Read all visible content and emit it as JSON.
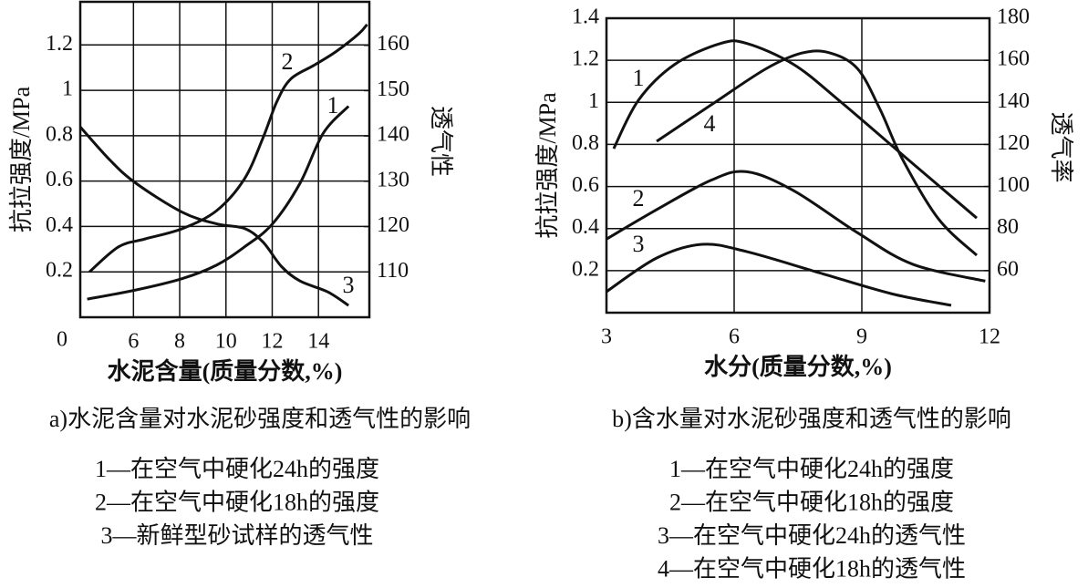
{
  "chart_data": [
    {
      "type": "line",
      "caption": "a)水泥含量对水泥砂强度和透气性的影响",
      "xlabel": "水泥含量(质量分数,%)",
      "ylabel": "抗拉强度/MPa",
      "y2label": "透气性",
      "xlim": [
        3.7,
        16.2
      ],
      "xticks": [
        6,
        8,
        10,
        12,
        14
      ],
      "ylim": [
        0,
        1.39
      ],
      "yticks": [
        0,
        0.2,
        0.4,
        0.6,
        0.8,
        1.0,
        1.2
      ],
      "y2lim": [
        100,
        169.6
      ],
      "y2ticks": [
        110,
        120,
        130,
        140,
        150,
        160
      ],
      "grid": true,
      "color": "#111111",
      "series": [
        {
          "name": "1—在空气中硬化24h的强度",
          "label": "1",
          "color": "#111111",
          "x": [
            4.0,
            6.1,
            8.1,
            9.6,
            10.8,
            12,
            13.2,
            14.2,
            15.3
          ],
          "values": [
            0.08,
            0.12,
            0.17,
            0.23,
            0.31,
            0.41,
            0.59,
            0.81,
            0.93
          ]
        },
        {
          "name": "2—在空气中硬化18h的强度",
          "label": "2",
          "color": "#111111",
          "x": [
            4.1,
            5.35,
            6.5,
            8.1,
            9.6,
            10.8,
            11.6,
            12.2,
            12.8,
            13.8,
            14.75,
            15.75,
            16.1
          ],
          "values": [
            0.2,
            0.31,
            0.345,
            0.39,
            0.47,
            0.61,
            0.79,
            0.95,
            1.05,
            1.11,
            1.17,
            1.25,
            1.29
          ]
        },
        {
          "name": "3—新鲜型砂试样的透气性",
          "label": "3",
          "color": "#111111",
          "axis": "y2",
          "x": [
            3.7,
            5,
            6.1,
            8.1,
            9.6,
            10.8,
            11.6,
            12.4,
            13.2,
            14.4,
            15.3
          ],
          "values": [
            142,
            134.6,
            129.6,
            123.2,
            120.6,
            119.6,
            116.6,
            111.2,
            108,
            105.6,
            102.6
          ]
        }
      ]
    },
    {
      "type": "line",
      "caption": "b)含水量对水泥砂强度和透气性的影响",
      "xlabel": "水分(质量分数,%)",
      "ylabel": "抗拉强度/MPa",
      "y2label": "透气率",
      "xlim": [
        3,
        12
      ],
      "xticks": [
        3,
        6,
        9,
        12
      ],
      "ylim": [
        0,
        1.4
      ],
      "yticks": [
        0.2,
        0.4,
        0.6,
        0.8,
        1.0,
        1.2,
        1.4
      ],
      "y2lim": [
        40,
        180
      ],
      "y2ticks": [
        60,
        80,
        100,
        120,
        140,
        160,
        180
      ],
      "grid": true,
      "color": "#111111",
      "series": [
        {
          "name": "1—在空气中硬化24h的强度",
          "label": "1",
          "color": "#111111",
          "x": [
            3.17,
            3.75,
            4.6,
            5.68,
            6.3,
            7.4,
            8.46,
            9.96,
            11.7
          ],
          "values": [
            0.78,
            1.01,
            1.18,
            1.28,
            1.28,
            1.18,
            1.01,
            0.75,
            0.45
          ]
        },
        {
          "name": "2—在空气中硬化18h的强度",
          "label": "2",
          "color": "#111111",
          "x": [
            3,
            4.18,
            5.46,
            6.3,
            7.4,
            8.9,
            10.2,
            11.9
          ],
          "values": [
            0.35,
            0.49,
            0.63,
            0.67,
            0.58,
            0.38,
            0.23,
            0.15
          ]
        },
        {
          "name": "3—在空气中硬化24h的透气性",
          "label": "3",
          "color": "#111111",
          "x": [
            3,
            4.18,
            5.25,
            6.3,
            8,
            9.7,
            11.1
          ],
          "values": [
            0.1,
            0.26,
            0.325,
            0.29,
            0.19,
            0.09,
            0.035
          ]
        },
        {
          "name": "4—在空气中硬化18h的透气性",
          "label": "4",
          "color": "#111111",
          "axis": "y2",
          "x": [
            4.18,
            5.46,
            6.75,
            7.6,
            8.25,
            8.9,
            9.43,
            9.96,
            10.8,
            11.7
          ],
          "values": [
            121.5,
            138.8,
            156,
            163.5,
            163.5,
            156,
            136.6,
            112.8,
            84.6,
            67.3
          ]
        }
      ]
    }
  ]
}
